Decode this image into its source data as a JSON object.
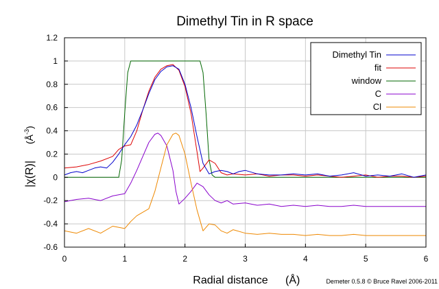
{
  "chart_data": {
    "type": "line",
    "title": "Dimethyl Tin in R space",
    "xlabel": "Radial distance",
    "xlabel_unit": "(Å)",
    "ylabel": "|χ(R)|",
    "ylabel_unit": "(Å",
    "ylabel_unit_exp": "-3",
    "ylabel_unit_close": ")",
    "credit": "Demeter 0.5.8 © Bruce Ravel 2006-2011",
    "xlim": [
      0,
      6
    ],
    "ylim": [
      -0.6,
      1.2
    ],
    "xticks": [
      0,
      1,
      2,
      3,
      4,
      5,
      6
    ],
    "xtick_labels": [
      "0",
      "1",
      "2",
      "3",
      "4",
      "5",
      "6"
    ],
    "yticks": [
      -0.6,
      -0.4,
      -0.2,
      0,
      0.2,
      0.4,
      0.6,
      0.8,
      1.0,
      1.2
    ],
    "ytick_labels": [
      "-0.6",
      "-0.4",
      "-0.2",
      "0",
      "0.2",
      "0.4",
      "0.6",
      "0.8",
      "1",
      "1.2"
    ],
    "grid": true,
    "legend_position": "top-right",
    "series": [
      {
        "name": "Dimethyl Tin",
        "color": "#0000cc",
        "x": [
          0,
          0.1,
          0.2,
          0.3,
          0.4,
          0.5,
          0.6,
          0.7,
          0.8,
          0.9,
          1.0,
          1.1,
          1.2,
          1.3,
          1.4,
          1.5,
          1.6,
          1.7,
          1.8,
          1.9,
          2.0,
          2.1,
          2.2,
          2.3,
          2.4,
          2.5,
          2.6,
          2.7,
          2.8,
          2.9,
          3.0,
          3.2,
          3.4,
          3.6,
          3.8,
          4.0,
          4.2,
          4.4,
          4.6,
          4.8,
          5.0,
          5.2,
          5.4,
          5.6,
          5.8,
          6.0
        ],
        "y": [
          0.02,
          0.04,
          0.05,
          0.04,
          0.06,
          0.08,
          0.09,
          0.08,
          0.13,
          0.2,
          0.28,
          0.35,
          0.45,
          0.58,
          0.72,
          0.84,
          0.91,
          0.95,
          0.96,
          0.93,
          0.8,
          0.6,
          0.35,
          0.12,
          0.03,
          0.05,
          0.06,
          0.05,
          0.03,
          0.05,
          0.06,
          0.03,
          0.02,
          0.02,
          0.03,
          0.02,
          0.03,
          0.01,
          0.02,
          0.04,
          0.01,
          0.02,
          0.01,
          0.03,
          0.0,
          0.02
        ]
      },
      {
        "name": "fit",
        "color": "#dd0000",
        "x": [
          0,
          0.2,
          0.4,
          0.6,
          0.8,
          0.9,
          1.0,
          1.1,
          1.2,
          1.3,
          1.4,
          1.5,
          1.6,
          1.7,
          1.8,
          1.9,
          2.0,
          2.1,
          2.2,
          2.25,
          2.3,
          2.4,
          2.5,
          2.6,
          2.7,
          2.8,
          3.0,
          3.2,
          3.4,
          3.6,
          3.8,
          4.0,
          4.2,
          4.4,
          4.6,
          4.8,
          5.0,
          5.2,
          5.4,
          5.6,
          5.8,
          6.0
        ],
        "y": [
          0.08,
          0.09,
          0.11,
          0.14,
          0.18,
          0.24,
          0.27,
          0.28,
          0.4,
          0.58,
          0.74,
          0.86,
          0.93,
          0.96,
          0.97,
          0.92,
          0.78,
          0.55,
          0.22,
          0.05,
          0.08,
          0.15,
          0.12,
          0.04,
          0.02,
          0.03,
          0.02,
          0.03,
          0.01,
          0.02,
          0.02,
          0.01,
          0.02,
          0.01,
          0.0,
          0.01,
          0.02,
          0.0,
          0.01,
          0.01,
          0.0,
          0.01
        ]
      },
      {
        "name": "window",
        "color": "#006600",
        "x": [
          0,
          0.9,
          0.95,
          1.0,
          1.05,
          1.1,
          2.25,
          2.3,
          2.35,
          2.4,
          2.45,
          2.5,
          6.0
        ],
        "y": [
          0,
          0,
          0.15,
          0.55,
          0.9,
          1.0,
          1.0,
          0.9,
          0.55,
          0.15,
          0.02,
          0,
          0
        ]
      },
      {
        "name": "C",
        "color": "#8800cc",
        "x": [
          0,
          0.2,
          0.4,
          0.6,
          0.8,
          1.0,
          1.1,
          1.2,
          1.3,
          1.4,
          1.5,
          1.55,
          1.6,
          1.7,
          1.8,
          1.85,
          1.9,
          2.0,
          2.1,
          2.2,
          2.3,
          2.4,
          2.5,
          2.6,
          2.7,
          2.8,
          3.0,
          3.2,
          3.4,
          3.6,
          3.8,
          4.0,
          4.2,
          4.4,
          4.6,
          4.8,
          5.0,
          5.2,
          5.4,
          5.6,
          5.8,
          6.0
        ],
        "y": [
          -0.21,
          -0.19,
          -0.18,
          -0.2,
          -0.16,
          -0.14,
          -0.05,
          0.06,
          0.18,
          0.3,
          0.37,
          0.38,
          0.36,
          0.27,
          0.06,
          -0.12,
          -0.23,
          -0.18,
          -0.12,
          -0.05,
          -0.08,
          -0.15,
          -0.2,
          -0.22,
          -0.2,
          -0.23,
          -0.22,
          -0.24,
          -0.23,
          -0.25,
          -0.24,
          -0.25,
          -0.24,
          -0.25,
          -0.25,
          -0.24,
          -0.25,
          -0.25,
          -0.25,
          -0.25,
          -0.25,
          -0.25
        ]
      },
      {
        "name": "Cl",
        "color": "#ee8800",
        "x": [
          0,
          0.2,
          0.4,
          0.6,
          0.8,
          1.0,
          1.1,
          1.2,
          1.3,
          1.4,
          1.5,
          1.6,
          1.7,
          1.8,
          1.85,
          1.9,
          2.0,
          2.1,
          2.2,
          2.3,
          2.4,
          2.5,
          2.6,
          2.7,
          2.8,
          3.0,
          3.2,
          3.4,
          3.6,
          3.8,
          4.0,
          4.2,
          4.4,
          4.6,
          4.8,
          5.0,
          5.2,
          5.4,
          5.6,
          5.8,
          6.0
        ],
        "y": [
          -0.46,
          -0.48,
          -0.44,
          -0.48,
          -0.42,
          -0.44,
          -0.38,
          -0.33,
          -0.3,
          -0.27,
          -0.12,
          0.08,
          0.28,
          0.37,
          0.38,
          0.36,
          0.2,
          -0.05,
          -0.28,
          -0.46,
          -0.4,
          -0.41,
          -0.46,
          -0.48,
          -0.45,
          -0.48,
          -0.49,
          -0.48,
          -0.49,
          -0.49,
          -0.5,
          -0.49,
          -0.5,
          -0.5,
          -0.49,
          -0.5,
          -0.5,
          -0.5,
          -0.5,
          -0.5,
          -0.5
        ]
      }
    ]
  }
}
